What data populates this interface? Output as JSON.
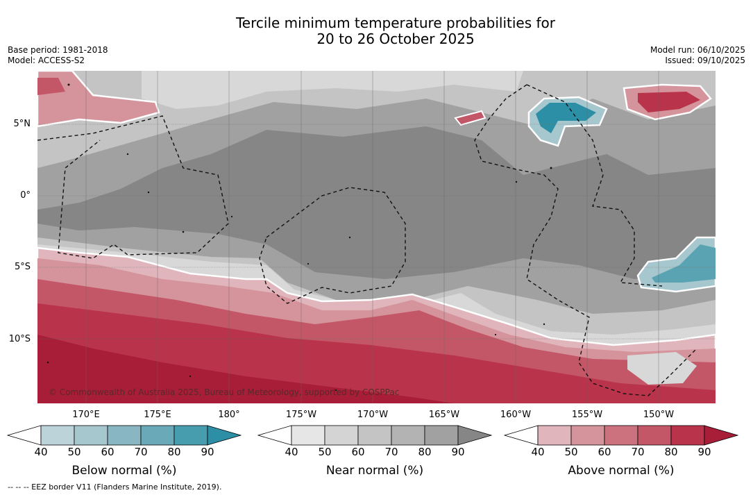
{
  "title_line1": "Tercile minimum temperature probabilities for",
  "title_line2": "20 to 26 October 2025",
  "meta_left": {
    "base_period": "Base period: 1981-2018",
    "model": "Model: ACCESS-S2"
  },
  "meta_right": {
    "model_run": "Model run: 06/10/2025",
    "issued": "Issued: 09/10/2025"
  },
  "copyright": "© Commonwealth of Australia 2025, Bureau of Meteorology, supported by COSPPac",
  "footer": "--  --  -- EEZ border V11 (Flanders Marine Institute, 2019).",
  "lat_labels": [
    "5°N",
    "0°",
    "5°S",
    "10°S"
  ],
  "lon_labels": [
    "170°E",
    "175°E",
    "180°",
    "175°W",
    "170°W",
    "165°W",
    "160°W",
    "155°W",
    "150°W"
  ],
  "colorbars": [
    {
      "title": "Below normal (%)",
      "ticks": [
        "40",
        "50",
        "60",
        "70",
        "80",
        "90"
      ],
      "colors": [
        "#ffffff",
        "#bcd3da",
        "#a6c7ce",
        "#88b7c3",
        "#6aa9b7",
        "#479dae",
        "#2c8fa5"
      ]
    },
    {
      "title": "Near normal (%)",
      "ticks": [
        "40",
        "50",
        "60",
        "70",
        "80",
        "90"
      ],
      "colors": [
        "#ffffff",
        "#e6e6e6",
        "#d4d4d4",
        "#c4c4c4",
        "#b3b3b3",
        "#a1a1a1",
        "#868686"
      ]
    },
    {
      "title": "Above normal (%)",
      "ticks": [
        "40",
        "50",
        "60",
        "70",
        "80",
        "90"
      ],
      "colors": [
        "#ffffff",
        "#e0b5bb",
        "#d5949c",
        "#cb727e",
        "#c35767",
        "#b9344a",
        "#a81e38"
      ]
    }
  ],
  "colors": {
    "near_dark": "#868686",
    "near_mid": "#a1a1a1",
    "near_light": "#c4c4c4",
    "near_pale": "#d8d8d8",
    "above_pale": "#e0b5bb",
    "above_light": "#d5949c",
    "above_mid": "#c35767",
    "above_dark": "#b9344a",
    "above_deep": "#a81e38",
    "below_mid": "#5aa3b3",
    "below_dark": "#2c8fa5",
    "below_light": "#a6c7ce"
  }
}
